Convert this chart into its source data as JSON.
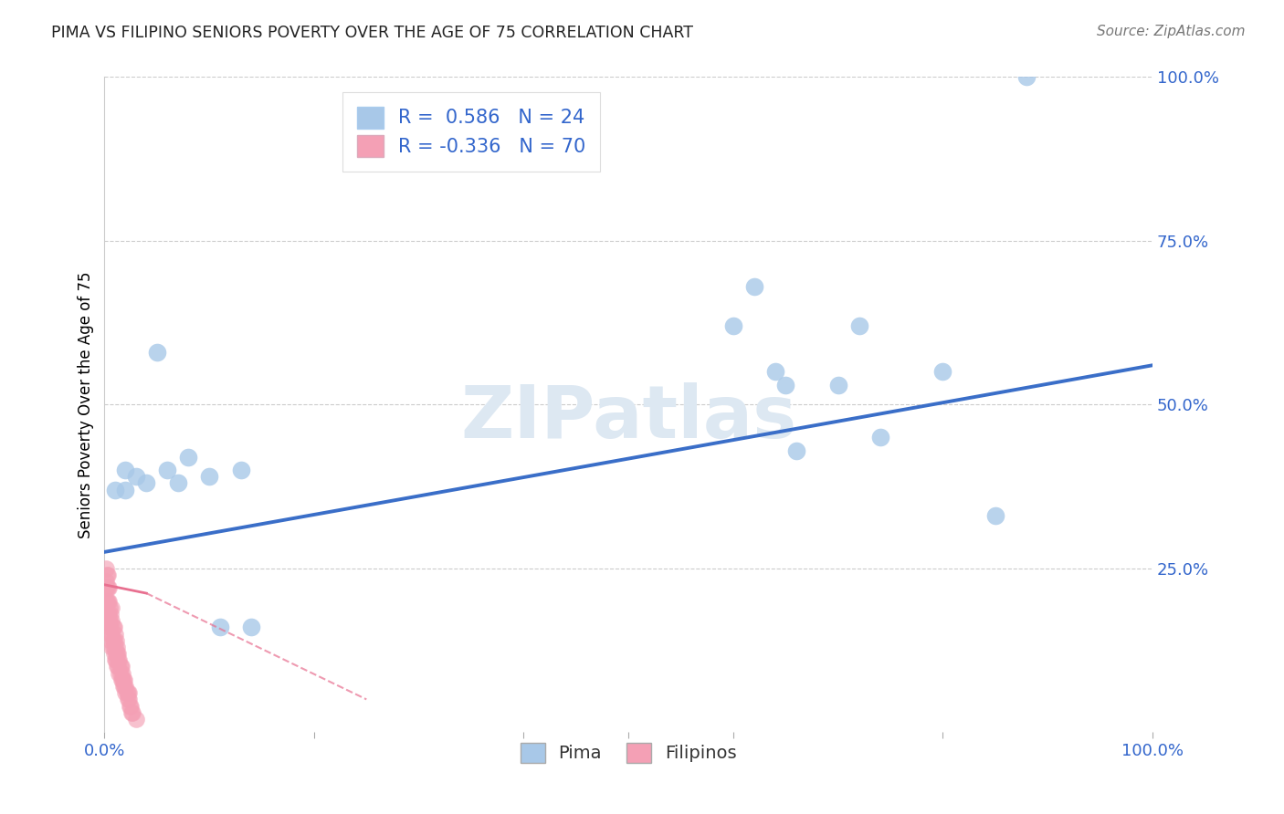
{
  "title": "PIMA VS FILIPINO SENIORS POVERTY OVER THE AGE OF 75 CORRELATION CHART",
  "source": "Source: ZipAtlas.com",
  "ylabel": "Seniors Poverty Over the Age of 75",
  "xlim": [
    0.0,
    1.0
  ],
  "ylim": [
    0.0,
    1.0
  ],
  "ytick_labels": [
    "100.0%",
    "75.0%",
    "50.0%",
    "25.0%"
  ],
  "ytick_values": [
    1.0,
    0.75,
    0.5,
    0.25
  ],
  "grid_values": [
    0.25,
    0.5,
    0.75,
    1.0
  ],
  "legend_r_pima": "0.586",
  "legend_n_pima": "24",
  "legend_r_filipino": "-0.336",
  "legend_n_filipino": "70",
  "pima_color": "#a8c8e8",
  "filipino_color": "#f4a0b5",
  "trend_blue": "#3a6ec8",
  "trend_pink": "#e87090",
  "pima_x": [
    0.01,
    0.02,
    0.02,
    0.03,
    0.04,
    0.05,
    0.06,
    0.07,
    0.08,
    0.1,
    0.11,
    0.13,
    0.14,
    0.6,
    0.62,
    0.64,
    0.65,
    0.66,
    0.7,
    0.72,
    0.74,
    0.8,
    0.85,
    0.88
  ],
  "pima_y": [
    0.37,
    0.37,
    0.4,
    0.39,
    0.38,
    0.58,
    0.4,
    0.38,
    0.42,
    0.39,
    0.16,
    0.4,
    0.16,
    0.62,
    0.68,
    0.55,
    0.53,
    0.43,
    0.53,
    0.62,
    0.45,
    0.55,
    0.33,
    1.0
  ],
  "filipino_x": [
    0.001,
    0.001,
    0.001,
    0.001,
    0.001,
    0.002,
    0.002,
    0.002,
    0.002,
    0.003,
    0.003,
    0.003,
    0.003,
    0.003,
    0.004,
    0.004,
    0.004,
    0.004,
    0.005,
    0.005,
    0.005,
    0.006,
    0.006,
    0.006,
    0.007,
    0.007,
    0.007,
    0.007,
    0.008,
    0.008,
    0.008,
    0.009,
    0.009,
    0.009,
    0.01,
    0.01,
    0.01,
    0.011,
    0.011,
    0.011,
    0.012,
    0.012,
    0.012,
    0.013,
    0.013,
    0.013,
    0.014,
    0.014,
    0.015,
    0.015,
    0.016,
    0.016,
    0.017,
    0.017,
    0.018,
    0.018,
    0.019,
    0.019,
    0.02,
    0.02,
    0.021,
    0.022,
    0.022,
    0.023,
    0.023,
    0.024,
    0.025,
    0.026,
    0.027,
    0.03
  ],
  "filipino_y": [
    0.18,
    0.2,
    0.22,
    0.23,
    0.25,
    0.18,
    0.2,
    0.22,
    0.24,
    0.17,
    0.18,
    0.2,
    0.22,
    0.24,
    0.16,
    0.18,
    0.2,
    0.22,
    0.15,
    0.17,
    0.19,
    0.14,
    0.16,
    0.18,
    0.13,
    0.15,
    0.17,
    0.19,
    0.13,
    0.14,
    0.16,
    0.12,
    0.14,
    0.16,
    0.11,
    0.13,
    0.15,
    0.11,
    0.12,
    0.14,
    0.1,
    0.12,
    0.13,
    0.1,
    0.11,
    0.12,
    0.09,
    0.11,
    0.09,
    0.1,
    0.08,
    0.1,
    0.08,
    0.09,
    0.07,
    0.08,
    0.07,
    0.08,
    0.06,
    0.07,
    0.06,
    0.05,
    0.06,
    0.05,
    0.06,
    0.04,
    0.04,
    0.03,
    0.03,
    0.02
  ],
  "pima_trend_x": [
    0.0,
    1.0
  ],
  "pima_trend_y": [
    0.275,
    0.56
  ],
  "fil_trend_x": [
    0.0,
    0.25
  ],
  "fil_trend_y": [
    0.225,
    0.05
  ]
}
